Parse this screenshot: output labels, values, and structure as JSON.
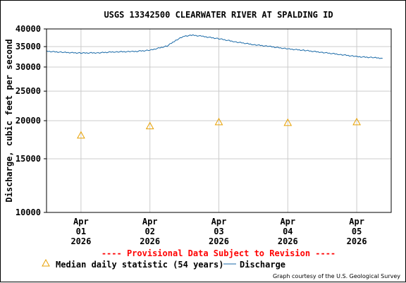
{
  "chart_data": {
    "type": "line",
    "title": "USGS 13342500 CLEARWATER RIVER AT SPALDING ID",
    "ylabel": "Discharge, cubic feet per second",
    "xlabel": "",
    "yscale": "log",
    "ylim": [
      10000,
      40000
    ],
    "y_ticks": [
      10000,
      15000,
      20000,
      25000,
      30000,
      35000,
      40000
    ],
    "y_tick_labels": [
      "10000",
      "15000",
      "20000",
      "25000",
      "30000",
      "35000",
      "40000"
    ],
    "x_range_days": [
      "2026-03-31T12:00",
      "2026-04-05T12:00"
    ],
    "x_ticks": [
      {
        "date": "2026-04-01",
        "label_lines": [
          "Apr",
          "01",
          "2026"
        ]
      },
      {
        "date": "2026-04-02",
        "label_lines": [
          "Apr",
          "02",
          "2026"
        ]
      },
      {
        "date": "2026-04-03",
        "label_lines": [
          "Apr",
          "03",
          "2026"
        ]
      },
      {
        "date": "2026-04-04",
        "label_lines": [
          "Apr",
          "04",
          "2026"
        ]
      },
      {
        "date": "2026-04-05",
        "label_lines": [
          "Apr",
          "05",
          "2026"
        ]
      }
    ],
    "grid": true,
    "series": [
      {
        "name": "Discharge",
        "color": "#1a6aa8",
        "points": [
          [
            "2026-03-31T12:00",
            33800
          ],
          [
            "2026-03-31T18:00",
            33500
          ],
          [
            "2026-04-01T00:00",
            33350
          ],
          [
            "2026-04-01T06:00",
            33400
          ],
          [
            "2026-04-01T12:00",
            33650
          ],
          [
            "2026-04-01T18:00",
            33700
          ],
          [
            "2026-04-02T00:00",
            34050
          ],
          [
            "2026-04-02T06:00",
            35150
          ],
          [
            "2026-04-02T09:00",
            36700
          ],
          [
            "2026-04-02T12:00",
            37900
          ],
          [
            "2026-04-02T15:00",
            38150
          ],
          [
            "2026-04-02T18:00",
            37850
          ],
          [
            "2026-04-03T00:00",
            37150
          ],
          [
            "2026-04-03T06:00",
            36250
          ],
          [
            "2026-04-03T12:00",
            35550
          ],
          [
            "2026-04-03T18:00",
            35000
          ],
          [
            "2026-04-04T00:00",
            34400
          ],
          [
            "2026-04-04T06:00",
            34000
          ],
          [
            "2026-04-04T12:00",
            33500
          ],
          [
            "2026-04-04T18:00",
            33000
          ],
          [
            "2026-04-05T00:00",
            32450
          ],
          [
            "2026-04-05T06:00",
            32200
          ],
          [
            "2026-04-05T09:00",
            32050
          ]
        ]
      },
      {
        "name": "Median daily statistic (54 years)",
        "color": "#e8a000",
        "marker": "triangle",
        "points": [
          [
            "2026-04-01",
            17900
          ],
          [
            "2026-04-02",
            19200
          ],
          [
            "2026-04-03",
            19800
          ],
          [
            "2026-04-04",
            19700
          ],
          [
            "2026-04-05",
            19800
          ]
        ]
      }
    ],
    "legend": {
      "placement": "bottom",
      "entries": [
        {
          "label": "Median daily statistic (54 years)",
          "symbol": "triangle",
          "color": "#e8a000"
        },
        {
          "label": "Discharge",
          "symbol": "line",
          "color": "#1a6aa8"
        }
      ]
    },
    "annotations": {
      "provisional": "---- Provisional Data Subject to Revision ----",
      "provisional_color": "#ff0000",
      "credit": "Graph courtesy of the U.S. Geological Survey"
    }
  }
}
